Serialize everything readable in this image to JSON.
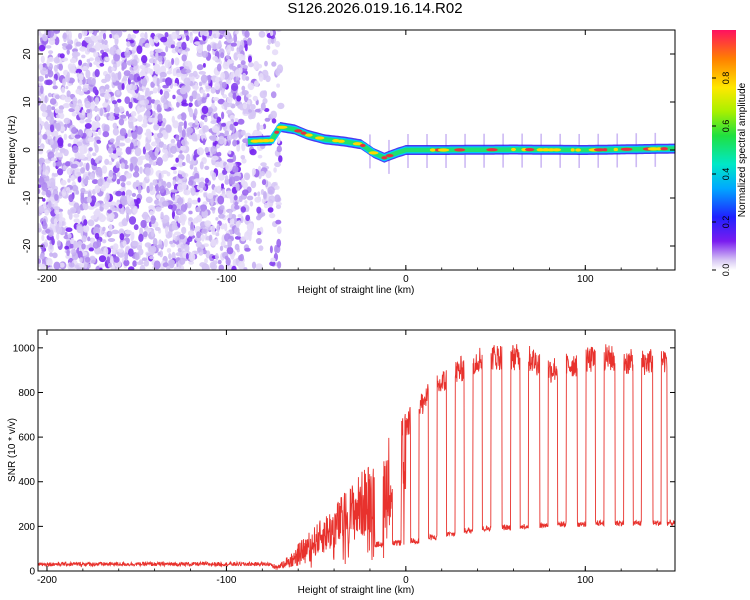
{
  "figure": {
    "title": "S126.2026.019.16.14.R02"
  },
  "chart_data": [
    {
      "type": "heatmap",
      "title": "S126.2026.019.16.14.R02",
      "xlabel": "Height of straight line (km)",
      "ylabel": "Frequency (Hz)",
      "xlim": [
        -205,
        150
      ],
      "ylim": [
        -25,
        25
      ],
      "x_ticks": [
        -200,
        -100,
        0,
        100
      ],
      "x_tick_labels": [
        "-200",
        "-100",
        "0",
        "100"
      ],
      "y_ticks": [
        -20,
        -10,
        0,
        10,
        20
      ],
      "y_tick_labels": [
        "-20",
        "-10",
        "0",
        "10",
        "20"
      ],
      "colorbar": {
        "label": "Normalized spectral amplitude",
        "range": [
          0,
          1
        ],
        "ticks": [
          0.0,
          0.2,
          0.4,
          0.6,
          0.8
        ],
        "tick_labels": [
          "0.0",
          "0.2",
          "0.4",
          "0.6",
          "0.8"
        ]
      },
      "noise_region_x": [
        -205,
        -75
      ],
      "signal_start_x": -88,
      "tone_track": {
        "x": [
          -88,
          -75,
          -70,
          -62,
          -55,
          -45,
          -35,
          -25,
          -18,
          -12,
          -5,
          0,
          20,
          60,
          100,
          150
        ],
        "frequency": [
          1.8,
          2.0,
          4.8,
          4.3,
          3.2,
          2.2,
          1.8,
          1.2,
          -0.6,
          -1.6,
          -0.6,
          0.0,
          0.0,
          0.1,
          0.0,
          0.3
        ]
      }
    },
    {
      "type": "line",
      "xlabel": "Height of straight line (km)",
      "ylabel": "SNR (10 * v/v)",
      "xlim": [
        -205,
        150
      ],
      "ylim": [
        0,
        1080
      ],
      "x_ticks": [
        -200,
        -100,
        0,
        100
      ],
      "x_tick_labels": [
        "-200",
        "-100",
        "0",
        "100"
      ],
      "y_ticks": [
        0,
        200,
        400,
        600,
        800,
        1000
      ],
      "y_tick_labels": [
        "0",
        "200",
        "400",
        "600",
        "800",
        "1000"
      ],
      "series": [
        {
          "name": "SNR",
          "color": "#e8322d",
          "envelope_x": [
            -205,
            -100,
            -70,
            -60,
            -50,
            -40,
            -30,
            -20,
            -10,
            0,
            10,
            20,
            30,
            40,
            50,
            60,
            70,
            80,
            90,
            100,
            110,
            120,
            130,
            140,
            150
          ],
          "envelope_y": [
            25,
            25,
            30,
            110,
            190,
            270,
            360,
            450,
            560,
            650,
            760,
            840,
            900,
            950,
            960,
            960,
            950,
            900,
            920,
            940,
            960,
            940,
            930,
            950,
            940
          ],
          "dropout_x": [
            -15,
            -5,
            5,
            15,
            25,
            35,
            45,
            56,
            66,
            77,
            87,
            98,
            108,
            119,
            129,
            140,
            148
          ],
          "dropout_floor_y": [
            120,
            125,
            135,
            150,
            165,
            180,
            190,
            195,
            200,
            205,
            210,
            210,
            215,
            215,
            215,
            215,
            215
          ]
        }
      ]
    }
  ]
}
